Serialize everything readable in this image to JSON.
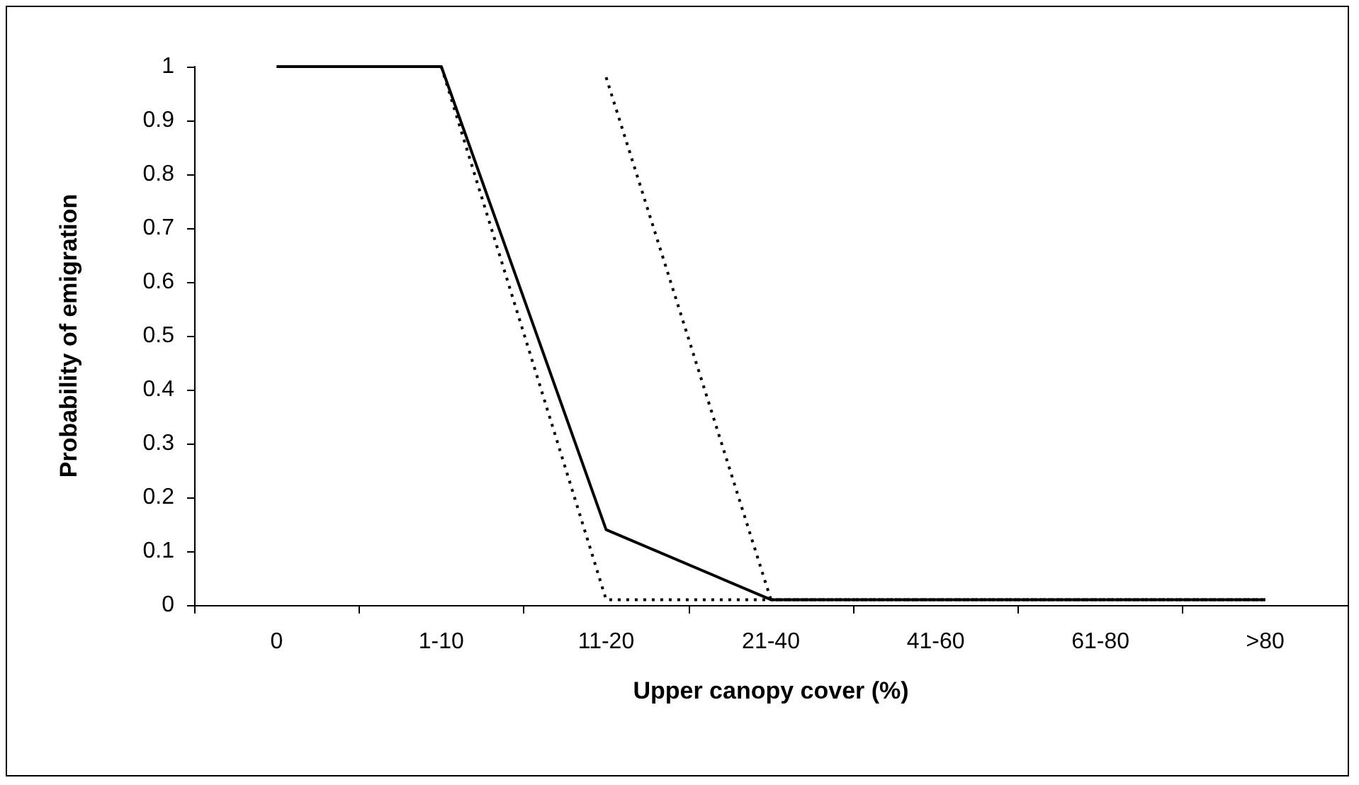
{
  "chart_data": {
    "type": "line",
    "xlabel": "Upper canopy cover (%)",
    "ylabel": "Probability of emigration",
    "categories": [
      "0",
      "1-10",
      "11-20",
      "21-40",
      "41-60",
      "61-80",
      ">80"
    ],
    "ylim": [
      0,
      1
    ],
    "yticks": [
      0,
      0.1,
      0.2,
      0.3,
      0.4,
      0.5,
      0.6,
      0.7,
      0.8,
      0.9,
      1
    ],
    "grid": false,
    "marker": "none",
    "series": [
      {
        "color": "#000000",
        "line_style": "solid",
        "values": [
          1,
          1,
          0.14,
          0.01,
          0.01,
          0.01,
          0.01
        ]
      },
      {
        "color": "#000000",
        "line_style": "dotted",
        "values": [
          null,
          1,
          0.01,
          0.01,
          0.01,
          0.01,
          0.01
        ]
      },
      {
        "color": "#000000",
        "line_style": "dotted",
        "values": [
          null,
          null,
          0.98,
          0.01,
          0.01,
          0.01,
          0.01
        ]
      }
    ]
  }
}
